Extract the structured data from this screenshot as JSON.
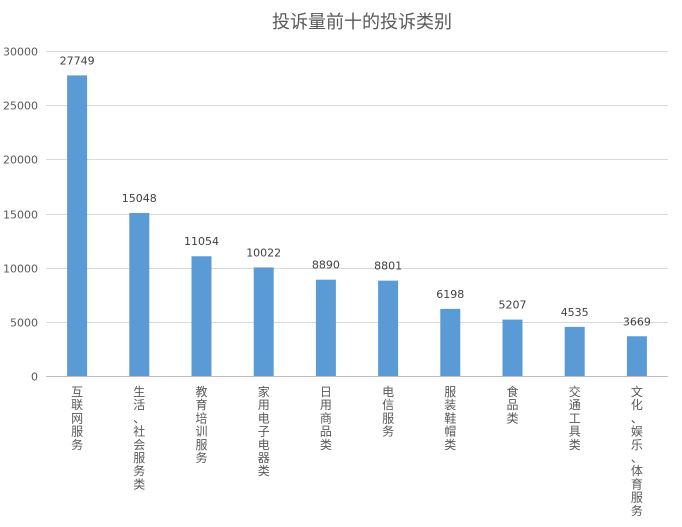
{
  "chart_data": {
    "type": "bar",
    "title": "投诉量前十的投诉类别",
    "categories": [
      "互联网服务",
      "生活、社会服务类",
      "教育培训服务",
      "家用电子电器类",
      "日用商品类",
      "电信服务",
      "服装鞋帽类",
      "食品类",
      "交通工具类",
      "文化、娱乐、体育服务"
    ],
    "values": [
      27749,
      15048,
      11054,
      10022,
      8890,
      8801,
      6198,
      5207,
      4535,
      3669
    ],
    "ylim": [
      0,
      30000
    ],
    "yticks": [
      0,
      5000,
      10000,
      15000,
      20000,
      25000,
      30000
    ],
    "grid": true,
    "legend": "none",
    "bar_color": "#5b9bd5",
    "gridline_color": "#d9d9d9",
    "text_color": "#595959",
    "title_color": "#595959"
  }
}
